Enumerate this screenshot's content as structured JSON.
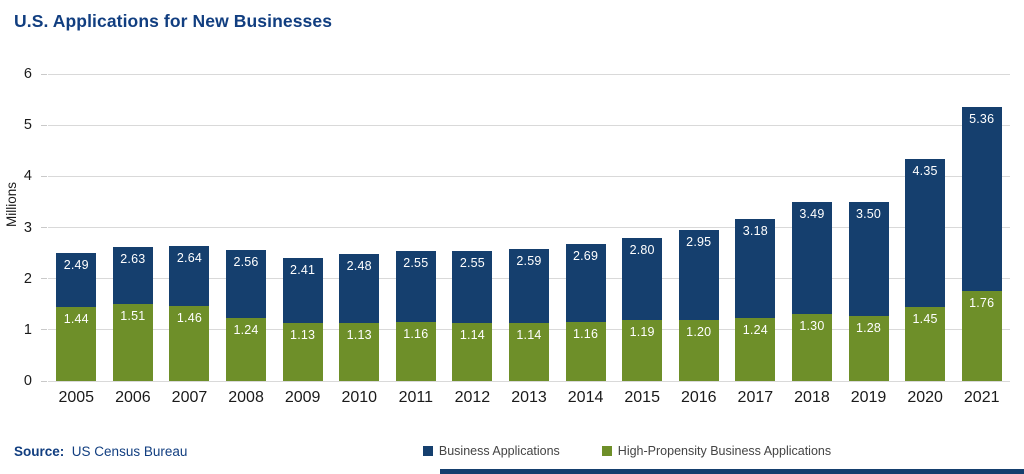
{
  "title": "U.S. Applications for New Businesses",
  "y_axis": {
    "label": "Millions",
    "ticks": [
      0,
      1,
      2,
      3,
      4,
      5,
      6
    ],
    "max": 6
  },
  "source": {
    "label": "Source:",
    "text": "US Census Bureau"
  },
  "legend": [
    {
      "label": "Business Applications",
      "color": "#153F6E"
    },
    {
      "label": "High-Propensity Business Applications",
      "color": "#6E8F29"
    }
  ],
  "colors": {
    "business": "#153F6E",
    "high_propensity": "#6E8F29",
    "title": "#113E80",
    "gridline": "#D9D9D9",
    "value_label": "#FFFFFF",
    "axis_text": "#1A1A1A",
    "legend_text": "#444444"
  },
  "chart_data": {
    "type": "bar",
    "subtype": "overlay-stacked (Business Applications value is total bar height; High-Propensity subset drawn from zero)",
    "title": "U.S. Applications for New Businesses",
    "xlabel": "",
    "ylabel": "Millions",
    "ylim": [
      0,
      6
    ],
    "grid": true,
    "legend_position": "bottom-center",
    "categories": [
      "2005",
      "2006",
      "2007",
      "2008",
      "2009",
      "2010",
      "2011",
      "2012",
      "2013",
      "2014",
      "2015",
      "2016",
      "2017",
      "2018",
      "2019",
      "2020",
      "2021"
    ],
    "series": [
      {
        "name": "Business Applications",
        "color": "#153F6E",
        "values": [
          2.49,
          2.63,
          2.64,
          2.56,
          2.41,
          2.48,
          2.55,
          2.55,
          2.59,
          2.69,
          2.8,
          2.95,
          3.18,
          3.49,
          3.5,
          4.35,
          5.36
        ]
      },
      {
        "name": "High-Propensity Business Applications",
        "color": "#6E8F29",
        "values": [
          1.44,
          1.51,
          1.46,
          1.24,
          1.13,
          1.13,
          1.16,
          1.14,
          1.14,
          1.16,
          1.19,
          1.2,
          1.24,
          1.3,
          1.28,
          1.45,
          1.76
        ]
      }
    ]
  }
}
